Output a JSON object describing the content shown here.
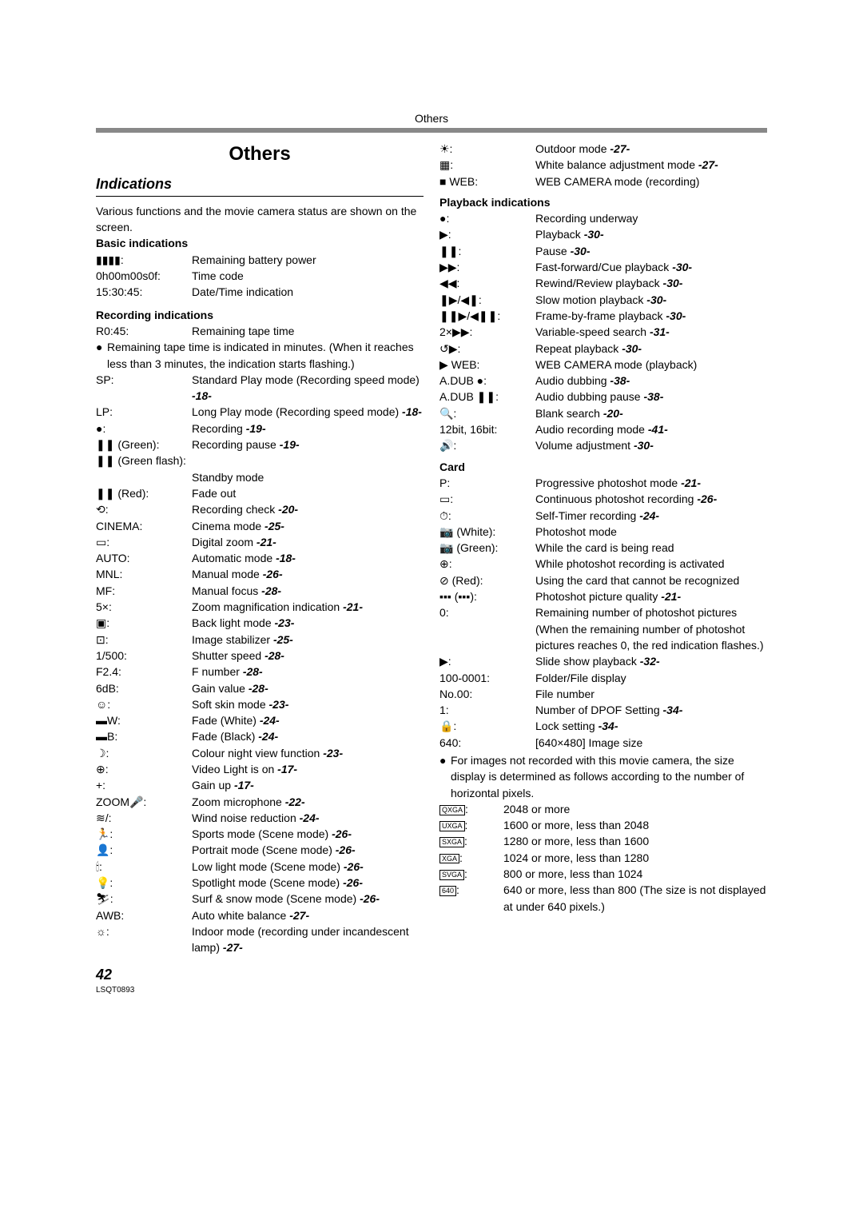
{
  "top_label": "Others",
  "section_title": "Others",
  "subsection_title": "Indications",
  "intro": "Various functions and the movie camera status are shown on the screen.",
  "basic_head": "Basic indications",
  "basic": [
    {
      "key": "▮▮▮▮:",
      "val": "Remaining battery power"
    },
    {
      "key": "0h00m00s0f:",
      "val": "Time code"
    },
    {
      "key": "15:30:45:",
      "val": "Date/Time indication"
    }
  ],
  "recording_head": "Recording indications",
  "rec_first": {
    "key": "R0:45:",
    "val": "Remaining tape time"
  },
  "rec_note": "Remaining tape time is indicated in minutes. (When it reaches less than 3 minutes, the indication starts flashing.)",
  "rec": [
    {
      "key": "SP:",
      "val": "Standard Play mode (Recording speed mode)",
      "ref": "-18-"
    },
    {
      "key": "LP:",
      "val": "Long Play mode (Recording speed mode)",
      "ref": "-18-"
    },
    {
      "key": "●:",
      "val": "Recording",
      "ref": "-19-"
    },
    {
      "key": "❚❚ (Green):",
      "val": "Recording pause",
      "ref": "-19-"
    },
    {
      "key": "❚❚ (Green flash):",
      "val": "",
      "ref": ""
    },
    {
      "key": "",
      "val": "Standby mode",
      "ref": ""
    },
    {
      "key": "❚❚ (Red):",
      "val": "Fade out",
      "ref": ""
    },
    {
      "key": "⟲:",
      "val": "Recording check",
      "ref": "-20-"
    },
    {
      "key": "CINEMA:",
      "val": "Cinema mode",
      "ref": "-25-"
    },
    {
      "key": "▭:",
      "val": "Digital zoom",
      "ref": "-21-"
    },
    {
      "key": "AUTO:",
      "val": "Automatic mode",
      "ref": "-18-"
    },
    {
      "key": "MNL:",
      "val": "Manual mode",
      "ref": "-26-"
    },
    {
      "key": "MF:",
      "val": "Manual focus",
      "ref": "-28-"
    },
    {
      "key": "5×:",
      "val": "Zoom magnification indication",
      "ref": "-21-"
    },
    {
      "key": "▣:",
      "val": "Back light mode",
      "ref": "-23-"
    },
    {
      "key": "⊡:",
      "val": "Image stabilizer",
      "ref": "-25-"
    },
    {
      "key": "1/500:",
      "val": "Shutter speed",
      "ref": "-28-"
    },
    {
      "key": "F2.4:",
      "val": "F number",
      "ref": "-28-"
    },
    {
      "key": "6dB:",
      "val": "Gain value",
      "ref": "-28-"
    },
    {
      "key": "☺:",
      "val": "Soft skin mode",
      "ref": "-23-"
    },
    {
      "key": "▬W:",
      "val": "Fade (White)",
      "ref": "-24-"
    },
    {
      "key": "▬B:",
      "val": "Fade (Black)",
      "ref": "-24-"
    },
    {
      "key": "☽:",
      "val": "Colour night view function",
      "ref": "-23-"
    },
    {
      "key": "⊕:",
      "val": "Video Light is on",
      "ref": "-17-"
    },
    {
      "key": "+:",
      "val": "Gain up",
      "ref": "-17-"
    },
    {
      "key": "ZOOM🎤:",
      "val": "Zoom microphone",
      "ref": "-22-"
    },
    {
      "key": "≋/:",
      "val": "Wind noise reduction",
      "ref": "-24-"
    },
    {
      "key": "🏃:",
      "val": "Sports mode (Scene mode)",
      "ref": "-26-"
    },
    {
      "key": "👤:",
      "val": "Portrait mode (Scene mode)",
      "ref": "-26-"
    },
    {
      "key": "🕯:",
      "val": "Low light mode (Scene mode)",
      "ref": "-26-"
    },
    {
      "key": "💡:",
      "val": "Spotlight mode (Scene mode)",
      "ref": "-26-"
    },
    {
      "key": "⛷:",
      "val": "Surf & snow mode (Scene mode)",
      "ref": "-26-"
    },
    {
      "key": "AWB:",
      "val": "Auto white balance",
      "ref": "-27-"
    },
    {
      "key": "☼:",
      "val": "Indoor mode (recording under incandescent lamp)",
      "ref": "-27-"
    }
  ],
  "rec_right_top": [
    {
      "key": "☀:",
      "val": "Outdoor mode",
      "ref": "-27-"
    },
    {
      "key": "▦:",
      "val": "White balance adjustment mode",
      "ref": "-27-"
    },
    {
      "key": "■ WEB:",
      "val": "WEB CAMERA mode (recording)",
      "ref": ""
    }
  ],
  "playback_head": "Playback indications",
  "playback": [
    {
      "key": "●:",
      "val": "Recording underway",
      "ref": ""
    },
    {
      "key": "▶:",
      "val": "Playback",
      "ref": "-30-"
    },
    {
      "key": "❚❚:",
      "val": "Pause",
      "ref": "-30-"
    },
    {
      "key": "▶▶:",
      "val": "Fast-forward/Cue playback",
      "ref": "-30-"
    },
    {
      "key": "◀◀:",
      "val": "Rewind/Review playback",
      "ref": "-30-"
    },
    {
      "key": "❚▶/◀❚:",
      "val": "Slow motion playback",
      "ref": "-30-"
    },
    {
      "key": "❚❚▶/◀❚❚:",
      "val": "Frame-by-frame playback",
      "ref": "-30-"
    },
    {
      "key": "2×▶▶:",
      "val": "Variable-speed search",
      "ref": "-31-"
    },
    {
      "key": "↺▶:",
      "val": "Repeat playback",
      "ref": "-30-"
    },
    {
      "key": "▶ WEB:",
      "val": "WEB CAMERA mode (playback)",
      "ref": ""
    },
    {
      "key": "A.DUB ●:",
      "val": "Audio dubbing",
      "ref": "-38-"
    },
    {
      "key": "A.DUB ❚❚:",
      "val": "Audio dubbing pause",
      "ref": "-38-"
    },
    {
      "key": "🔍:",
      "val": "Blank search",
      "ref": "-20-"
    },
    {
      "key": "12bit, 16bit:",
      "val": "Audio recording mode",
      "ref": "-41-"
    },
    {
      "key": "🔊:",
      "val": "Volume adjustment",
      "ref": "-30-"
    }
  ],
  "card_head": "Card",
  "card": [
    {
      "key": "P:",
      "val": "Progressive photoshot mode",
      "ref": "-21-"
    },
    {
      "key": "▭:",
      "val": "Continuous photoshot recording",
      "ref": "-26-"
    },
    {
      "key": "⏱:",
      "val": "Self-Timer recording",
      "ref": "-24-"
    },
    {
      "key": "📷 (White):",
      "val": "Photoshot mode",
      "ref": ""
    },
    {
      "key": "📷 (Green):",
      "val": "While the card is being read",
      "ref": ""
    },
    {
      "key": "⊕:",
      "val": "While photoshot recording is activated",
      "ref": ""
    },
    {
      "key": "⊘ (Red):",
      "val": "Using the card that cannot be recognized",
      "ref": ""
    },
    {
      "key": "▪▪▪ (▪▪▪):",
      "val": "Photoshot picture quality",
      "ref": "-21-"
    },
    {
      "key": "0:",
      "val": "Remaining number of photoshot pictures (When the remaining number of photoshot pictures reaches 0, the red indication flashes.)",
      "ref": ""
    },
    {
      "key": "▶:",
      "val": "Slide show playback",
      "ref": "-32-"
    },
    {
      "key": "100-0001:",
      "val": "Folder/File display",
      "ref": ""
    },
    {
      "key": "No.00:",
      "val": "File number",
      "ref": ""
    },
    {
      "key": "1:",
      "val": "Number of DPOF Setting",
      "ref": "-34-"
    },
    {
      "key": "🔒:",
      "val": "Lock setting",
      "ref": "-34-"
    },
    {
      "key": "640:",
      "val": "[640×480] Image size",
      "ref": ""
    }
  ],
  "card_note": "For images not recorded with this movie camera, the size display is determined as follows according to the number of horizontal pixels.",
  "sizes": [
    {
      "key": "QXGA:",
      "val": "2048 or more"
    },
    {
      "key": "UXGA:",
      "val": "1600 or more, less than 2048"
    },
    {
      "key": "SXGA:",
      "val": "1280 or more, less than 1600"
    },
    {
      "key": "XGA:",
      "val": "1024 or more, less than 1280"
    },
    {
      "key": "SVGA:",
      "val": "800 or more, less than 1024"
    },
    {
      "key": "640:",
      "val": "640 or more, less than 800 (The size is not displayed at under 640 pixels.)"
    }
  ],
  "page_number": "42",
  "doc_id": "LSQT0893"
}
